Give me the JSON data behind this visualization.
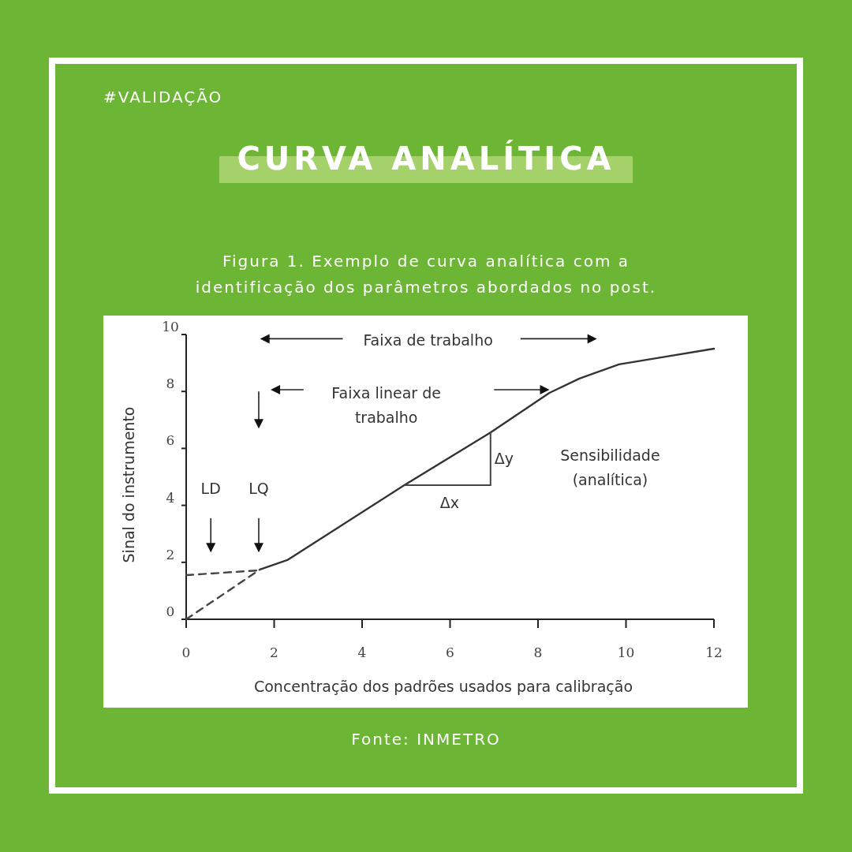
{
  "chart_data": {
    "type": "line",
    "title": "CURVA ANALÍTICA",
    "subtitle": "Figura 1. Exemplo de curva analítica com a\nidentificação dos parâmetros abordados no post.",
    "xlabel": "Concentração dos padrões usados para calibração",
    "ylabel": "Sinal do instrumento",
    "xlim": [
      0,
      12
    ],
    "ylim": [
      0,
      10
    ],
    "xticks": [
      0,
      2,
      4,
      6,
      8,
      10,
      12
    ],
    "yticks": [
      0,
      2,
      4,
      6,
      8,
      10
    ],
    "grid": false,
    "marker": "none",
    "series": [
      {
        "color": "#333333",
        "line_style": "solid",
        "x": [
          1.68,
          2.3,
          4.96,
          6.92,
          8.26,
          8.94,
          9.84,
          10.9,
          12
        ],
        "values": [
          1.75,
          2.08,
          4.71,
          6.56,
          7.95,
          8.45,
          8.95,
          9.22,
          9.5
        ]
      },
      {
        "color": "#444444",
        "line_style": "dashed",
        "x": [
          0,
          1.68
        ],
        "values": [
          0,
          1.75
        ]
      },
      {
        "color": "#444444",
        "line_style": "dashed",
        "x": [
          0,
          1.68
        ],
        "values": [
          1.55,
          1.72
        ]
      }
    ],
    "annotations": [
      "#VALIDAÇÃO",
      "Faixa de trabalho",
      "Faixa linear de\ntrabalho",
      "LD",
      "LQ",
      {
        "text": "Δy",
        "x": 6.92,
        "y": 6.56
      },
      "Δx",
      "Sensibilidade\n(analítica)",
      "Fonte: INMETRO"
    ]
  }
}
